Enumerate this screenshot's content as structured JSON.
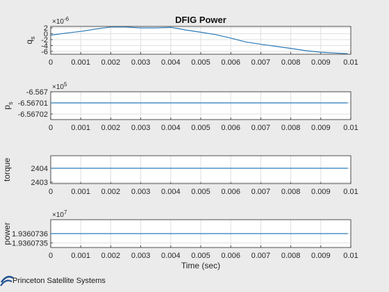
{
  "figure": {
    "title": "DFIG Power",
    "xlabel": "Time (sec)",
    "logo_text": "Princeton Satellite Systems"
  },
  "colors": {
    "line": "#2a7ab8",
    "axis": "#262626",
    "grid": "#dfdfdf",
    "background": "#ebebeb",
    "plot_bg": "#ffffff"
  },
  "chart_data": [
    {
      "type": "line",
      "title": "DFIG Power",
      "ylabel_main": "q",
      "ylabel_sub": "s",
      "exponent_base": "×10",
      "exponent_power": "-6",
      "x_ticks": [
        "0",
        "0.001",
        "0.002",
        "0.003",
        "0.004",
        "0.005",
        "0.006",
        "0.007",
        "0.008",
        "0.009",
        "0.01"
      ],
      "y_ticks": [
        "2",
        "0",
        "-2",
        "-4",
        "-6"
      ],
      "xlim": [
        0,
        0.01
      ],
      "ylim": [
        -7,
        2.5
      ],
      "tick_values": [
        2,
        0,
        -2,
        -4,
        -6
      ],
      "series": [
        {
          "x": [
            0,
            0.0005,
            0.001,
            0.0015,
            0.002,
            0.0025,
            0.003,
            0.0035,
            0.004,
            0.0045,
            0.005,
            0.0055,
            0.006,
            0.0065,
            0.007,
            0.0075,
            0.008,
            0.0085,
            0.009,
            0.0095,
            0.0099
          ],
          "y": [
            -0.5,
            0.2,
            0.8,
            1.6,
            2.3,
            2.3,
            2.0,
            2.0,
            2.2,
            1.3,
            0.5,
            -0.3,
            -1.5,
            -2.8,
            -3.6,
            -4.3,
            -5.0,
            -5.8,
            -6.3,
            -6.6,
            -6.8
          ]
        }
      ]
    },
    {
      "type": "line",
      "ylabel_main": "p",
      "ylabel_sub": "s",
      "exponent_base": "×10",
      "exponent_power": "5",
      "x_ticks": [
        "0",
        "0.001",
        "0.002",
        "0.003",
        "0.004",
        "0.005",
        "0.006",
        "0.007",
        "0.008",
        "0.009",
        "0.01"
      ],
      "y_ticks": [
        "-6.567",
        "-6.56701",
        "-6.56702"
      ],
      "xlim": [
        0,
        0.01
      ],
      "ylim": [
        -6.567025,
        -6.567
      ],
      "tick_values": [
        -6.567,
        -6.56701,
        -6.56702
      ],
      "series": [
        {
          "x": [
            0,
            0.0099
          ],
          "y": [
            -6.56701,
            -6.56701
          ]
        }
      ]
    },
    {
      "type": "line",
      "ylabel_main": "torque",
      "ylabel_sub": "",
      "exponent_base": "",
      "exponent_power": "",
      "x_ticks": [
        "0",
        "0.001",
        "0.002",
        "0.003",
        "0.004",
        "0.005",
        "0.006",
        "0.007",
        "0.008",
        "0.009",
        "0.01"
      ],
      "y_ticks": [
        "2404",
        "2403"
      ],
      "xlim": [
        0,
        0.01
      ],
      "ylim": [
        2402.9,
        2404.9
      ],
      "tick_values": [
        2404,
        2403
      ],
      "series": [
        {
          "x": [
            0,
            0.0099
          ],
          "y": [
            2404,
            2404
          ]
        }
      ]
    },
    {
      "type": "line",
      "ylabel_main": "power",
      "ylabel_sub": "",
      "exponent_base": "×10",
      "exponent_power": "7",
      "x_ticks": [
        "0",
        "0.001",
        "0.002",
        "0.003",
        "0.004",
        "0.005",
        "0.006",
        "0.007",
        "0.008",
        "0.009",
        "0.01"
      ],
      "y_ticks": [
        "1.9360736",
        "1.9360735"
      ],
      "xlim": [
        0,
        0.01
      ],
      "ylim": [
        1.93607345,
        1.93607375
      ],
      "tick_values": [
        1.9360736,
        1.9360735
      ],
      "series": [
        {
          "x": [
            0,
            0.0099
          ],
          "y": [
            1.9360736,
            1.9360736
          ]
        }
      ]
    }
  ]
}
